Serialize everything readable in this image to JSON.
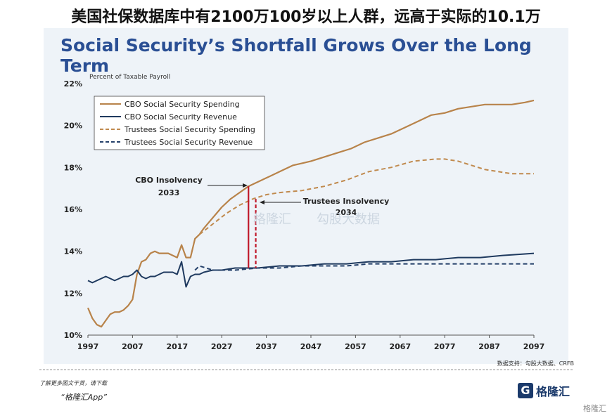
{
  "headline": "美国社保数据库中有2100万100岁以上人群，远高于实际的10.1万",
  "chart_title": "Social Security’s Shortfall Grows Over the Long Term",
  "footer": {
    "source": "数据支持：勾股大数据、CRFB",
    "note": "了解更多图文干货，请下载",
    "app": "“格隆汇App”",
    "brand": "格隆汇",
    "corner": "格隆汇"
  },
  "watermarks": [
    "格隆汇",
    "勾股大数据"
  ],
  "colors": {
    "cbo_spending": "#b8834a",
    "cbo_revenue": "#1f3a5f",
    "trustees_spending": "#c08a4e",
    "trustees_revenue": "#24406a",
    "insolvency_line": "#c0182a",
    "title": "#2a4f94"
  },
  "chart_data": {
    "type": "line",
    "ylabel": "Percent of Taxable Payroll",
    "xlim": [
      1997,
      2097
    ],
    "ylim": [
      10,
      22
    ],
    "xticks": [
      1997,
      2007,
      2017,
      2027,
      2037,
      2047,
      2057,
      2067,
      2077,
      2087,
      2097
    ],
    "yticks": [
      10,
      12,
      14,
      16,
      18,
      20,
      22
    ],
    "ytick_labels": [
      "10%",
      "12%",
      "14%",
      "16%",
      "18%",
      "20%",
      "22%"
    ],
    "grid": false,
    "legend_position": "top-left",
    "series": [
      {
        "name": "CBO Social Security Spending",
        "style": "solid",
        "x": [
          1997,
          1998,
          1999,
          2000,
          2001,
          2002,
          2003,
          2004,
          2005,
          2006,
          2007,
          2008,
          2009,
          2010,
          2011,
          2012,
          2013,
          2014,
          2015,
          2016,
          2017,
          2018,
          2019,
          2020,
          2021,
          2022,
          2023,
          2025,
          2027,
          2029,
          2031,
          2033,
          2035,
          2037,
          2040,
          2043,
          2045,
          2047,
          2050,
          2053,
          2056,
          2059,
          2062,
          2065,
          2068,
          2071,
          2074,
          2077,
          2080,
          2083,
          2086,
          2089,
          2092,
          2095,
          2097
        ],
        "y": [
          11.3,
          10.8,
          10.5,
          10.4,
          10.7,
          11.0,
          11.1,
          11.1,
          11.2,
          11.4,
          11.7,
          12.9,
          13.5,
          13.6,
          13.9,
          14.0,
          13.9,
          13.9,
          13.9,
          13.8,
          13.7,
          14.3,
          13.7,
          13.7,
          14.6,
          14.8,
          15.1,
          15.6,
          16.1,
          16.5,
          16.8,
          17.1,
          17.3,
          17.5,
          17.8,
          18.1,
          18.2,
          18.3,
          18.5,
          18.7,
          18.9,
          19.2,
          19.4,
          19.6,
          19.9,
          20.2,
          20.5,
          20.6,
          20.8,
          20.9,
          21.0,
          21.0,
          21.0,
          21.1,
          21.2
        ]
      },
      {
        "name": "CBO Social Security Revenue",
        "style": "solid",
        "x": [
          1997,
          1998,
          1999,
          2001,
          2003,
          2004,
          2005,
          2006,
          2007,
          2008,
          2009,
          2010,
          2011,
          2012,
          2013,
          2014,
          2015,
          2016,
          2017,
          2018,
          2019,
          2020,
          2021,
          2022,
          2023,
          2025,
          2027,
          2030,
          2035,
          2040,
          2045,
          2050,
          2055,
          2060,
          2065,
          2070,
          2075,
          2080,
          2085,
          2090,
          2097
        ],
        "y": [
          12.6,
          12.5,
          12.6,
          12.8,
          12.6,
          12.7,
          12.8,
          12.8,
          12.9,
          13.1,
          12.8,
          12.7,
          12.8,
          12.8,
          12.9,
          13.0,
          13.0,
          13.0,
          12.9,
          13.5,
          12.3,
          12.8,
          12.9,
          12.9,
          13.0,
          13.1,
          13.1,
          13.2,
          13.2,
          13.3,
          13.3,
          13.4,
          13.4,
          13.5,
          13.5,
          13.6,
          13.6,
          13.7,
          13.7,
          13.8,
          13.9
        ]
      },
      {
        "name": "Trustees Social Security Spending",
        "style": "dashed",
        "x": [
          2022,
          2025,
          2028,
          2031,
          2034,
          2037,
          2040,
          2045,
          2050,
          2055,
          2060,
          2065,
          2070,
          2075,
          2077,
          2080,
          2083,
          2086,
          2089,
          2092,
          2095,
          2097
        ],
        "y": [
          14.8,
          15.3,
          15.8,
          16.2,
          16.5,
          16.7,
          16.8,
          16.9,
          17.1,
          17.4,
          17.8,
          18.0,
          18.3,
          18.4,
          18.4,
          18.3,
          18.1,
          17.9,
          17.8,
          17.7,
          17.7,
          17.7
        ]
      },
      {
        "name": "Trustees Social Security Revenue",
        "style": "dashed",
        "x": [
          2021,
          2022,
          2025,
          2030,
          2035,
          2040,
          2045,
          2050,
          2055,
          2060,
          2065,
          2070,
          2075,
          2080,
          2085,
          2090,
          2097
        ],
        "y": [
          13.1,
          13.3,
          13.1,
          13.1,
          13.2,
          13.2,
          13.3,
          13.3,
          13.3,
          13.4,
          13.4,
          13.4,
          13.4,
          13.4,
          13.4,
          13.4,
          13.4
        ]
      }
    ],
    "annotations": [
      {
        "text_line1": "CBO Insolvency",
        "text_line2": "2033",
        "year": 2033,
        "y_top": 17.1,
        "y_bottom": 13.2,
        "style": "solid"
      },
      {
        "text_line1": "Trustees Insolvency",
        "text_line2": "2034",
        "year": 2034,
        "y_top": 16.5,
        "y_bottom": 13.2,
        "style": "dashed"
      }
    ]
  }
}
